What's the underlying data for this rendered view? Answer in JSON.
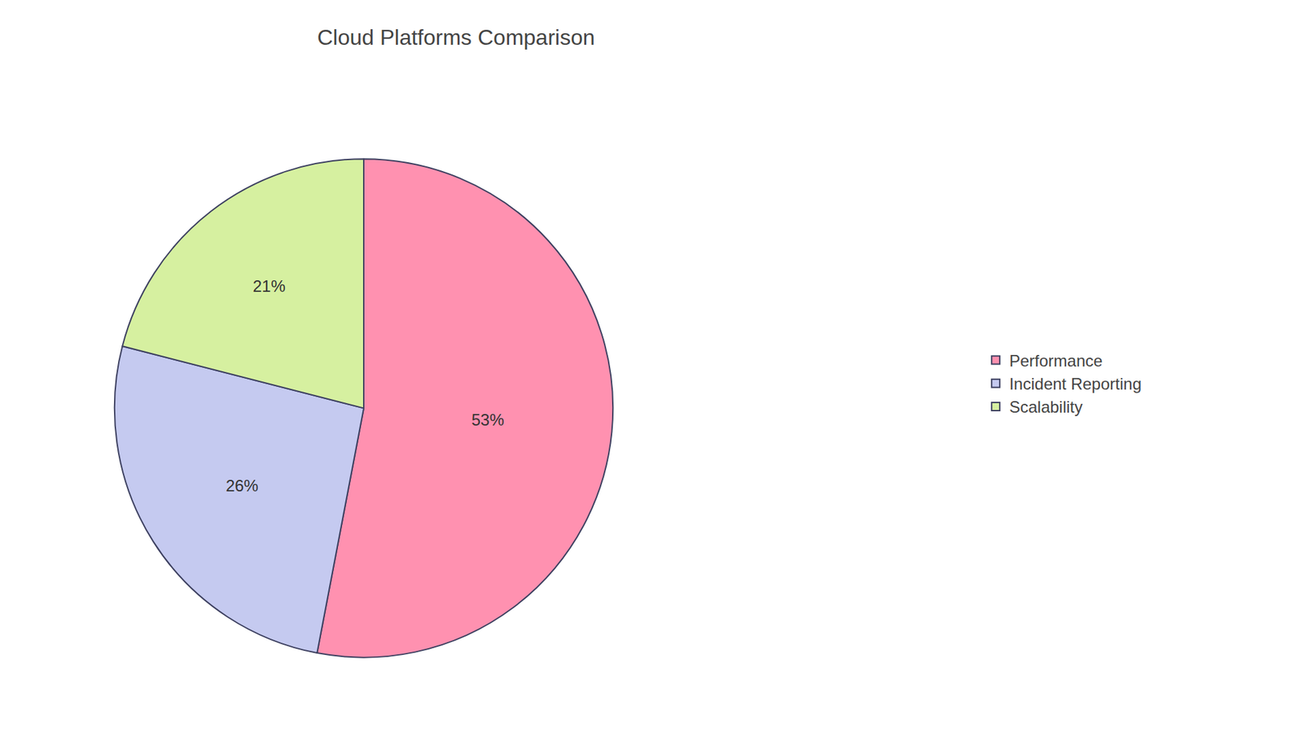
{
  "chart_data": {
    "type": "pie",
    "title": "Cloud Platforms Comparison",
    "categories": [
      "Performance",
      "Incident Reporting",
      "Scalability"
    ],
    "values": [
      53,
      26,
      21
    ],
    "value_labels": [
      "53%",
      "26%",
      "21%"
    ],
    "colors": [
      "#FF91B0",
      "#C5CAF0",
      "#D6F0A0"
    ],
    "data_labels": true,
    "legend": "right"
  }
}
